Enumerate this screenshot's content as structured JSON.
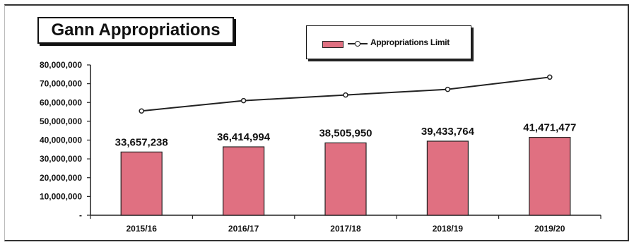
{
  "chart_data": {
    "type": "bar",
    "title": "Gann Appropriations",
    "categories": [
      "2015/16",
      "2016/17",
      "2017/18",
      "2018/19",
      "2019/20"
    ],
    "series": [
      {
        "name": "",
        "kind": "bar",
        "color": "#e07081",
        "values": [
          33657238,
          36414994,
          38505950,
          39433764,
          41471477
        ],
        "labels": [
          "33,657,238",
          "36,414,994",
          "38,505,950",
          "39,433,764",
          "41,471,477"
        ]
      },
      {
        "name": "Appropriations Limit",
        "kind": "line",
        "color": "#222222",
        "values": [
          55500000,
          61000000,
          64000000,
          67000000,
          73500000
        ]
      }
    ],
    "xlabel": "",
    "ylabel": "",
    "ylim": [
      0,
      80000000
    ],
    "yticks": [
      0,
      10000000,
      20000000,
      30000000,
      40000000,
      50000000,
      60000000,
      70000000,
      80000000
    ],
    "ytick_labels": [
      "-",
      "10,000,000",
      "20,000,000",
      "30,000,000",
      "40,000,000",
      "50,000,000",
      "60,000,000",
      "70,000,000",
      "80,000,000"
    ],
    "grid": false,
    "legend_position": "top-center"
  },
  "legend": {
    "line_label": "Appropriations Limit"
  }
}
